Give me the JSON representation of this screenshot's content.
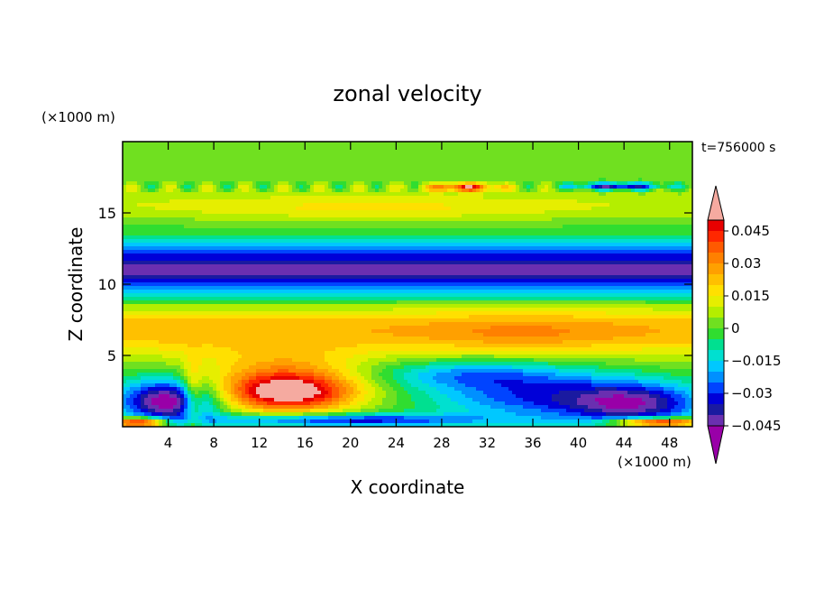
{
  "chart_data": {
    "type": "heatmap",
    "title": "zonal velocity",
    "xlabel": "X coordinate",
    "ylabel": "Z coordinate",
    "x_units": "(×1000 m)",
    "y_units": "(×1000 m)",
    "time_label": "t=756000 s",
    "xlim": [
      0,
      50
    ],
    "ylim": [
      0,
      20
    ],
    "x_ticks": [
      4,
      8,
      12,
      16,
      20,
      24,
      28,
      32,
      36,
      40,
      44,
      48
    ],
    "y_ticks": [
      5,
      10,
      15
    ],
    "colorbar": {
      "tick_labels": [
        "0.045",
        "0.03",
        "0.015",
        "0",
        "−0.015",
        "−0.03",
        "−0.045"
      ],
      "tick_values": [
        0.045,
        0.03,
        0.015,
        0,
        -0.015,
        -0.03,
        -0.045
      ],
      "levels": [
        -0.05,
        -0.045,
        -0.04,
        -0.035,
        -0.03,
        -0.025,
        -0.02,
        -0.015,
        -0.01,
        -0.005,
        0,
        0.005,
        0.01,
        0.015,
        0.02,
        0.025,
        0.03,
        0.035,
        0.04,
        0.045,
        0.05
      ],
      "colors": [
        "#9900a8",
        "#6a2fb0",
        "#1a1aa0",
        "#0000d8",
        "#0044ff",
        "#0090ff",
        "#00c8ff",
        "#00e0d0",
        "#00e090",
        "#30dd30",
        "#70e020",
        "#b4ee00",
        "#e6ee00",
        "#ffe000",
        "#ffc000",
        "#ffa000",
        "#ff8000",
        "#ff5a00",
        "#ff2800",
        "#e80000",
        "#f5aaa0"
      ],
      "under_color": "#9900a8",
      "over_color": "#f5aaa0"
    },
    "features": [
      {
        "x": 4,
        "z": 1.2,
        "value": -0.05
      },
      {
        "x": 14,
        "z": 2.3,
        "value": 0.05
      },
      {
        "x": 46,
        "z": 1.5,
        "value": -0.05
      },
      {
        "x": 34,
        "z": 6.5,
        "value": 0.03
      },
      {
        "x": 25,
        "z": 11,
        "value": -0.04
      },
      {
        "x": 30,
        "z": 16.8,
        "value": 0.05
      }
    ]
  }
}
